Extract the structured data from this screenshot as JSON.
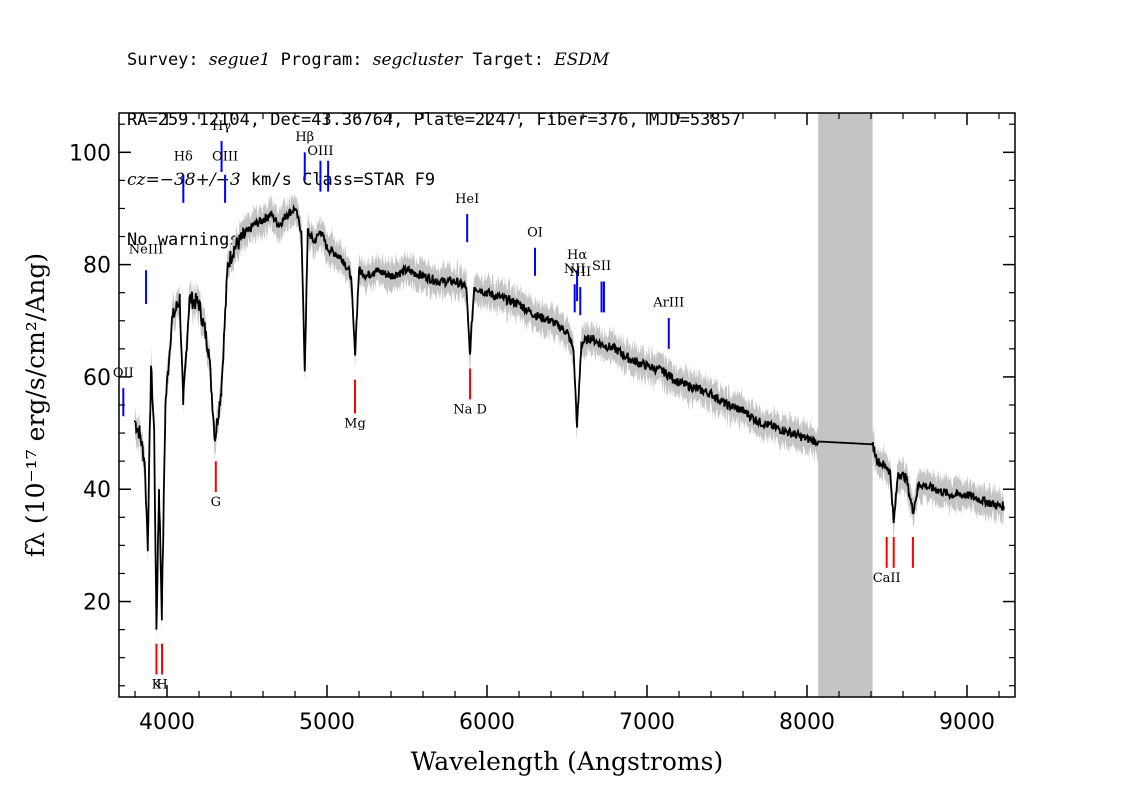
{
  "header": {
    "survey_label": "Survey: ",
    "survey": "segue1",
    "program_label": " Program: ",
    "program": "segcluster",
    "target_label": " Target: ",
    "target": "ESDM",
    "line2": "RA=259.12104, Dec=43.36764, Plate=2247, Fiber=376, MJD=53857",
    "cz_prefix": "cz=",
    "cz_value": "−38+/−3",
    "cz_suffix": " km/s Class=STAR F9",
    "line4": "No warnings."
  },
  "chart_data": {
    "type": "line",
    "title": "",
    "xlabel": "Wavelength (Angstroms)",
    "ylabel": "fλ (10⁻¹⁷ erg/s/cm²/Ang)",
    "xlim": [
      3700,
      9300
    ],
    "ylim": [
      3,
      107
    ],
    "xticks": [
      4000,
      5000,
      6000,
      7000,
      8000,
      9000
    ],
    "yticks": [
      20,
      40,
      60,
      80,
      100
    ],
    "masked_region": [
      8070,
      8410
    ],
    "colors": {
      "flux": "#000000",
      "error_band": "#c4c4c4",
      "emission": "#0000ff",
      "absorption": "#ff0000",
      "mask": "#c4c4c4"
    },
    "series": [
      {
        "x": [
          3800,
          3830,
          3860,
          3880,
          3900,
          3920,
          3934,
          3950,
          3968,
          3990,
          4030,
          4080,
          4101,
          4140,
          4200,
          4260,
          4300,
          4340,
          4380,
          4420,
          4480,
          4540,
          4600,
          4650,
          4700,
          4750,
          4800,
          4840,
          4861,
          4880,
          4920,
          4960,
          5000,
          5050,
          5100,
          5150,
          5175,
          5200,
          5250,
          5300,
          5400,
          5500,
          5600,
          5700,
          5800,
          5870,
          5893,
          5920,
          6000,
          6100,
          6200,
          6300,
          6400,
          6500,
          6540,
          6563,
          6590,
          6650,
          6700,
          6800,
          6900,
          7000,
          7100,
          7200,
          7300,
          7400,
          7500,
          7600,
          7700,
          7800,
          7900,
          8000,
          8070,
          8410,
          8440,
          8498,
          8520,
          8542,
          8570,
          8620,
          8662,
          8700,
          8800,
          8900,
          9000,
          9100,
          9200,
          9230
        ],
        "y": [
          52,
          50,
          45,
          30,
          62,
          50,
          15,
          40,
          18,
          55,
          70,
          74,
          55,
          74,
          73,
          65,
          49,
          58,
          80,
          83,
          85,
          87,
          88,
          89,
          87,
          89,
          90,
          86,
          61,
          86,
          84,
          86,
          83,
          82,
          81,
          78,
          64,
          79,
          78,
          79,
          78,
          79,
          78,
          77,
          77,
          76,
          64,
          76,
          75,
          74,
          73,
          71,
          70,
          68,
          65,
          51,
          66,
          67,
          66,
          65,
          63,
          62,
          61,
          59,
          58,
          57,
          55,
          54,
          52,
          51,
          50,
          49,
          48.5,
          48,
          45,
          44,
          43,
          34,
          43,
          42,
          36,
          41,
          40,
          39,
          39,
          38,
          37,
          37
        ]
      }
    ],
    "error_halfwidth": 2.5,
    "lines": [
      {
        "label": "OII",
        "wave": 3727,
        "kind": "emission",
        "y1": 53,
        "y2": 58,
        "ty": 60
      },
      {
        "label": "NeIII",
        "wave": 3869,
        "kind": "emission",
        "y1": 73,
        "y2": 79,
        "ty": 82
      },
      {
        "label": "Hδ",
        "wave": 4102,
        "kind": "emission",
        "y1": 91,
        "y2": 96,
        "ty": 98.5
      },
      {
        "label": "Hγ",
        "wave": 4341,
        "kind": "emission",
        "y1": 96.5,
        "y2": 102,
        "ty": 104
      },
      {
        "label": "OIII",
        "wave": 4363,
        "kind": "emission",
        "y1": 91,
        "y2": 96,
        "ty": 98.5
      },
      {
        "label": "Hβ",
        "wave": 4861,
        "kind": "emission",
        "y1": 95,
        "y2": 100,
        "ty": 102
      },
      {
        "label": "OIII",
        "wave": 4959,
        "kind": "emission",
        "y1": 93,
        "y2": 98.5,
        "ty": 99.5
      },
      {
        "label": "",
        "wave": 5007,
        "kind": "emission",
        "y1": 93,
        "y2": 98.5,
        "ty": null
      },
      {
        "label": "HeI",
        "wave": 5876,
        "kind": "emission",
        "y1": 84,
        "y2": 89,
        "ty": 91
      },
      {
        "label": "OI",
        "wave": 6300,
        "kind": "emission",
        "y1": 78,
        "y2": 83,
        "ty": 85
      },
      {
        "label": "NII",
        "wave": 6548,
        "kind": "emission",
        "y1": 71.5,
        "y2": 76.5,
        "ty": 78.5
      },
      {
        "label": "Hα",
        "wave": 6563,
        "kind": "emission",
        "y1": 73.5,
        "y2": 79,
        "ty": 81
      },
      {
        "label": "NII",
        "wave": 6583,
        "kind": "emission",
        "y1": 71,
        "y2": 76,
        "ty": 78
      },
      {
        "label": "SII",
        "wave": 6716,
        "kind": "emission",
        "y1": 71.5,
        "y2": 77,
        "ty": 79
      },
      {
        "label": "",
        "wave": 6731,
        "kind": "emission",
        "y1": 71.5,
        "y2": 77,
        "ty": null
      },
      {
        "label": "ArIII",
        "wave": 7136,
        "kind": "emission",
        "y1": 65,
        "y2": 70.5,
        "ty": 72.5
      },
      {
        "label": "K",
        "wave": 3934,
        "kind": "absorption",
        "y1": 7,
        "y2": 12.5,
        "ty": 4.5
      },
      {
        "label": "H",
        "wave": 3969,
        "kind": "absorption",
        "y1": 7,
        "y2": 12.5,
        "ty": 4.5
      },
      {
        "label": "G",
        "wave": 4305,
        "kind": "absorption",
        "y1": 39.5,
        "y2": 45,
        "ty": 37
      },
      {
        "label": "Mg",
        "wave": 5175,
        "kind": "absorption",
        "y1": 53.5,
        "y2": 59.5,
        "ty": 51
      },
      {
        "label": "Na D",
        "wave": 5894,
        "kind": "absorption",
        "y1": 56,
        "y2": 61.5,
        "ty": 53.5
      },
      {
        "label": "CaII",
        "wave": 8498,
        "kind": "absorption",
        "y1": 26,
        "y2": 31.5,
        "ty": 23.5
      },
      {
        "label": "",
        "wave": 8542,
        "kind": "absorption",
        "y1": 26,
        "y2": 31.5,
        "ty": null
      },
      {
        "label": "",
        "wave": 8662,
        "kind": "absorption",
        "y1": 26,
        "y2": 31.5,
        "ty": null
      }
    ]
  }
}
